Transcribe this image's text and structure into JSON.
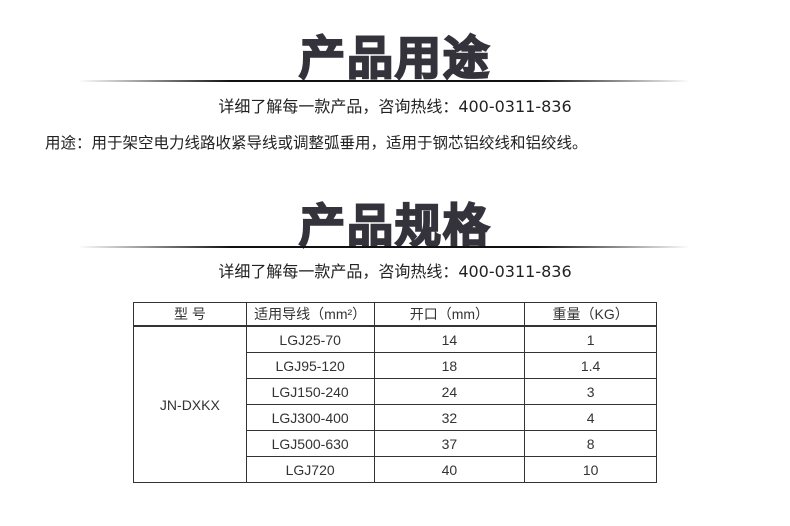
{
  "usage_section": {
    "title": "产品用途",
    "subtitle": "详细了解每一款产品，咨询热线：400-0311-836",
    "text": "用途：用于架空电力线路收紧导线或调整弧垂用，适用于钢芯铝绞线和铝绞线。"
  },
  "spec_section": {
    "title": "产品规格",
    "subtitle": "详细了解每一款产品，咨询热线：400-0311-836"
  },
  "table": {
    "headers": [
      "型  号",
      "适用导线（mm²）",
      "开口（mm）",
      "重量（KG）"
    ],
    "model": "JN-DXKX",
    "rows": [
      {
        "wire": "LGJ25-70",
        "opening": "14",
        "weight": "1"
      },
      {
        "wire": "LGJ95-120",
        "opening": "18",
        "weight": "1.4"
      },
      {
        "wire": "LGJ150-240",
        "opening": "24",
        "weight": "3"
      },
      {
        "wire": "LGJ300-400",
        "opening": "32",
        "weight": "4"
      },
      {
        "wire": "LGJ500-630",
        "opening": "37",
        "weight": "8"
      },
      {
        "wire": "LGJ720",
        "opening": "40",
        "weight": "10"
      }
    ]
  }
}
